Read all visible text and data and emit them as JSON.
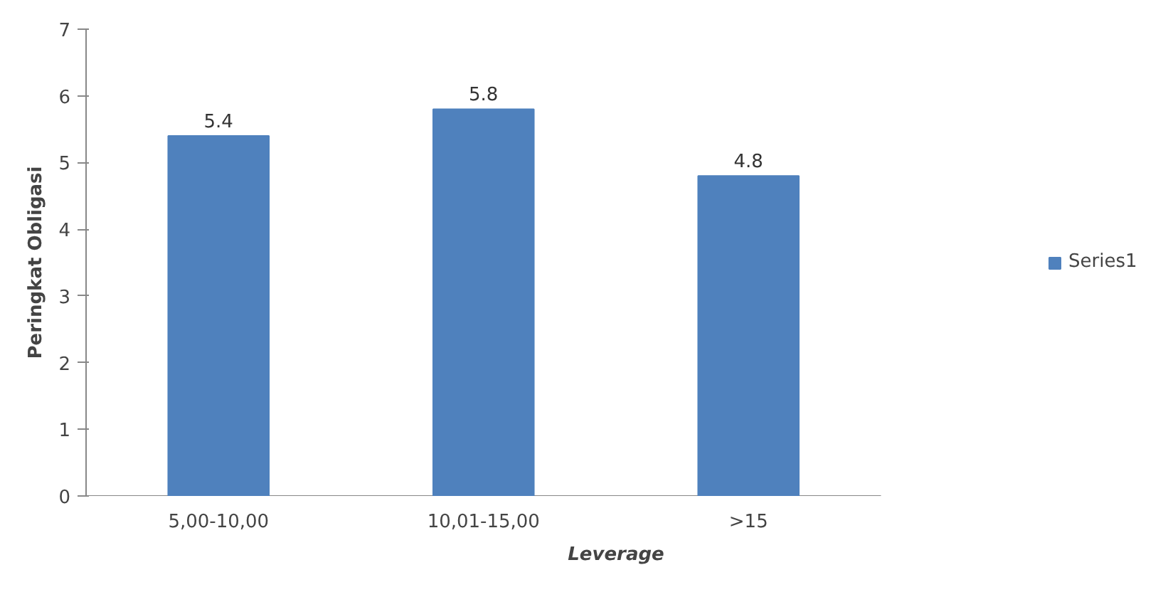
{
  "chart_data": {
    "type": "bar",
    "xlabel": "Leverage",
    "ylabel": "Peringkat Obligasi",
    "categories": [
      "5,00-10,00",
      "10,01-15,00",
      ">15"
    ],
    "series": [
      {
        "name": "Series1",
        "color": "#4f81bd",
        "values": [
          5.4,
          5.8,
          4.8
        ]
      }
    ],
    "ylim": [
      0,
      7
    ],
    "yticks": [
      0,
      1,
      2,
      3,
      4,
      5,
      6,
      7
    ],
    "grid": false,
    "legend": "right",
    "data_labels": true
  }
}
